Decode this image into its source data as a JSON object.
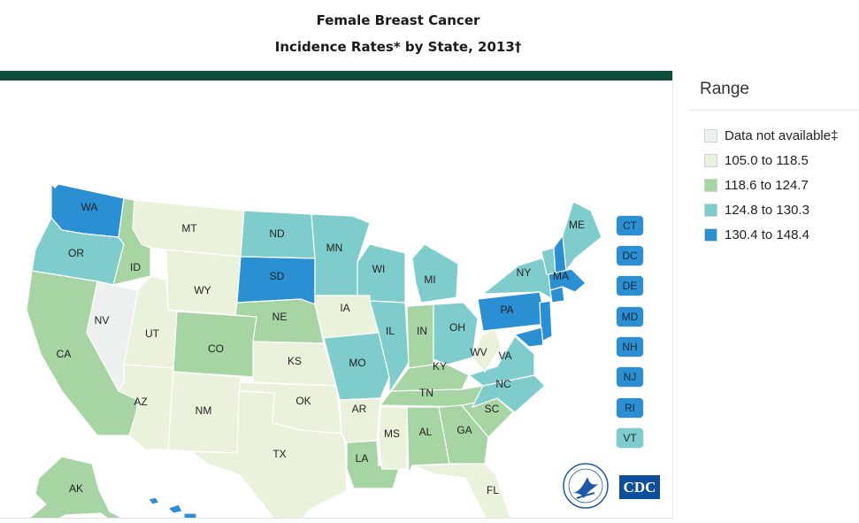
{
  "title": {
    "line1": "Female Breast Cancer",
    "line2": "Incidence Rates* by State, 2013†"
  },
  "colors": {
    "na": "#eef0f0",
    "c1": "#eaf2dc",
    "c2": "#a6d4a2",
    "c3": "#7fcccc",
    "c4": "#2b8fd3",
    "bar": "#0f4d3c"
  },
  "legend": {
    "title": "Range",
    "items": [
      {
        "label": "Data not available‡",
        "color": "#eef0f0"
      },
      {
        "label": "105.0 to 118.5",
        "color": "#eaf2dc"
      },
      {
        "label": "118.6 to 124.7",
        "color": "#a6d4a2"
      },
      {
        "label": "124.8 to 130.3",
        "color": "#7fcccc"
      },
      {
        "label": "130.4 to 148.4",
        "color": "#2b8fd3"
      }
    ]
  },
  "states": [
    {
      "abbr": "WA",
      "range": 4
    },
    {
      "abbr": "OR",
      "range": 3
    },
    {
      "abbr": "CA",
      "range": 2
    },
    {
      "abbr": "NV",
      "range": 0
    },
    {
      "abbr": "ID",
      "range": 2
    },
    {
      "abbr": "MT",
      "range": 1
    },
    {
      "abbr": "WY",
      "range": 1
    },
    {
      "abbr": "UT",
      "range": 1
    },
    {
      "abbr": "AZ",
      "range": 1
    },
    {
      "abbr": "CO",
      "range": 2
    },
    {
      "abbr": "NM",
      "range": 1
    },
    {
      "abbr": "ND",
      "range": 3
    },
    {
      "abbr": "SD",
      "range": 4
    },
    {
      "abbr": "NE",
      "range": 2
    },
    {
      "abbr": "KS",
      "range": 1
    },
    {
      "abbr": "OK",
      "range": 1
    },
    {
      "abbr": "TX",
      "range": 1
    },
    {
      "abbr": "MN",
      "range": 3
    },
    {
      "abbr": "IA",
      "range": 1
    },
    {
      "abbr": "MO",
      "range": 3
    },
    {
      "abbr": "AR",
      "range": 1
    },
    {
      "abbr": "LA",
      "range": 2
    },
    {
      "abbr": "WI",
      "range": 3
    },
    {
      "abbr": "IL",
      "range": 3
    },
    {
      "abbr": "MI",
      "range": 3
    },
    {
      "abbr": "IN",
      "range": 2
    },
    {
      "abbr": "OH",
      "range": 3
    },
    {
      "abbr": "KY",
      "range": 2
    },
    {
      "abbr": "TN",
      "range": 2
    },
    {
      "abbr": "MS",
      "range": 1
    },
    {
      "abbr": "AL",
      "range": 2
    },
    {
      "abbr": "GA",
      "range": 2
    },
    {
      "abbr": "FL",
      "range": 1
    },
    {
      "abbr": "SC",
      "range": 2
    },
    {
      "abbr": "NC",
      "range": 3
    },
    {
      "abbr": "VA",
      "range": 3
    },
    {
      "abbr": "WV",
      "range": 1
    },
    {
      "abbr": "PA",
      "range": 4
    },
    {
      "abbr": "NY",
      "range": 3
    },
    {
      "abbr": "ME",
      "range": 3
    },
    {
      "abbr": "MA",
      "range": 4
    },
    {
      "abbr": "AK",
      "range": 2
    },
    {
      "abbr": "HI",
      "range": 4
    }
  ],
  "small_states": [
    {
      "abbr": "CT",
      "range": 4
    },
    {
      "abbr": "DC",
      "range": 4
    },
    {
      "abbr": "DE",
      "range": 4
    },
    {
      "abbr": "MD",
      "range": 4
    },
    {
      "abbr": "NH",
      "range": 4
    },
    {
      "abbr": "NJ",
      "range": 4
    },
    {
      "abbr": "RI",
      "range": 4
    },
    {
      "abbr": "VT",
      "range": 3
    }
  ],
  "logos": {
    "cdc": "CDC",
    "hhs": "hhs-eagle-seal-icon"
  }
}
